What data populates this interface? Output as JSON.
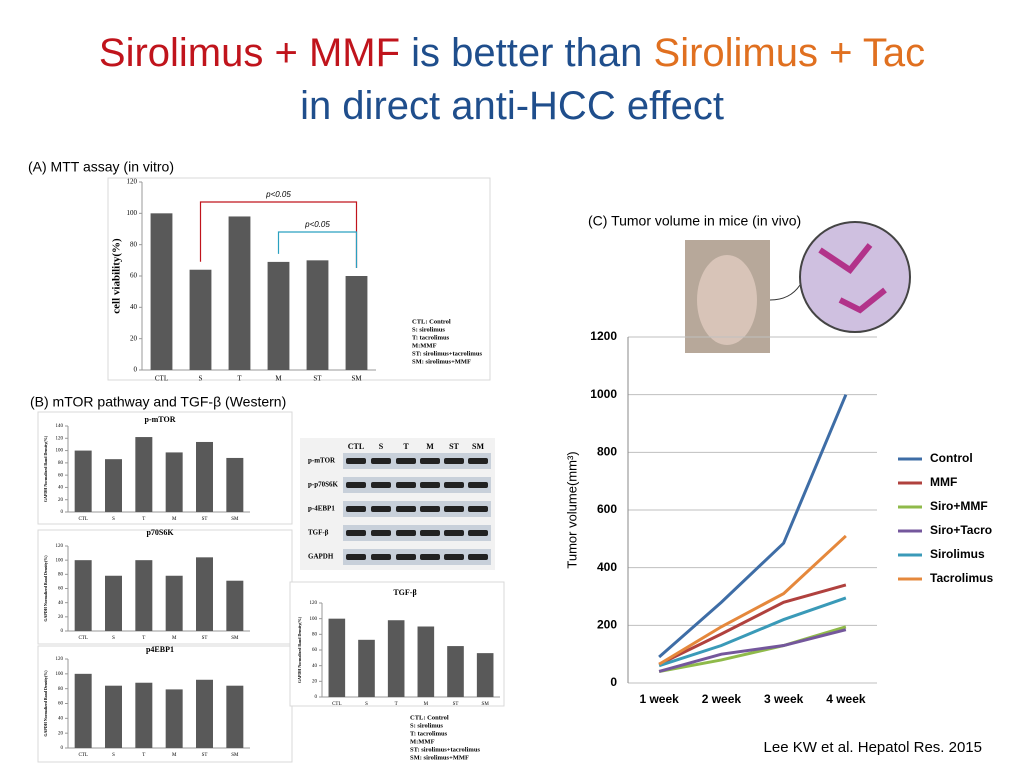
{
  "title_lines": [
    [
      {
        "text": "Sirolimus + MMF",
        "color": "#c0141c"
      },
      {
        "text": " is better than ",
        "color": "#1f4e8c"
      },
      {
        "text": "Sirolimus + Tac",
        "color": "#e07020"
      }
    ],
    [
      {
        "text": "in direct anti-HCC effect",
        "color": "#1f4e8c"
      }
    ]
  ],
  "sections": [
    "(A) MTT assay (in vitro)",
    "(B) mTOR pathway and TGF-β (Western)",
    "(C) Tumor volume in mice (in vivo)"
  ],
  "citation": "Lee KW et al. Hepatol Res. 2015",
  "western_blot": {
    "columns": [
      "CTL",
      "S",
      "T",
      "M",
      "ST",
      "SM"
    ],
    "rows": [
      "p-mTOR",
      "p-p70S6K",
      "p-4EBP1",
      "TGF-β",
      "GAPDH"
    ]
  },
  "chart_data": [
    {
      "type": "bar",
      "ylabel": "cell viability(%)",
      "categories": [
        "CTL",
        "S",
        "T",
        "M",
        "ST",
        "SM"
      ],
      "values": [
        100,
        64,
        98,
        69,
        70,
        60
      ],
      "color": "#595959",
      "ylim": [
        0,
        120
      ],
      "yticks": [
        0,
        20,
        40,
        60,
        80,
        100,
        120
      ],
      "annotations": [
        {
          "text": "p<0.05",
          "from": "S",
          "to": "SM",
          "color": "#c0141c"
        },
        {
          "text": "p<0.05",
          "from": "M",
          "to": "SM",
          "color": "#2aa0c0"
        }
      ],
      "notes": [
        "CTL: Control",
        "S: sirolimus",
        "T: tacrolimus",
        "M:MMF",
        "ST: sirolimus+tacrolimus",
        "SM: sirolimus+MMF"
      ]
    },
    {
      "type": "bar",
      "title": "p-mTOR",
      "ylabel": "GAPDH Normalized Band Density(%)",
      "categories": [
        "CTL",
        "S",
        "T",
        "M",
        "ST",
        "SM"
      ],
      "values": [
        100,
        86,
        122,
        97,
        114,
        88
      ],
      "color": "#595959",
      "ylim": [
        0,
        140
      ],
      "yticks": [
        0,
        20,
        40,
        60,
        80,
        100,
        120,
        140
      ]
    },
    {
      "type": "bar",
      "title": "p70S6K",
      "ylabel": "GAPDH Normalized Band Density(%)",
      "categories": [
        "CTL",
        "S",
        "T",
        "M",
        "ST",
        "SM"
      ],
      "values": [
        100,
        78,
        100,
        78,
        104,
        71
      ],
      "color": "#595959",
      "ylim": [
        0,
        120
      ],
      "yticks": [
        0,
        20,
        40,
        60,
        80,
        100,
        120
      ]
    },
    {
      "type": "bar",
      "title": "p4EBP1",
      "ylabel": "GAPDH Normalized Band Density(%)",
      "categories": [
        "CTL",
        "S",
        "T",
        "M",
        "ST",
        "SM"
      ],
      "values": [
        100,
        84,
        88,
        79,
        92,
        84
      ],
      "color": "#595959",
      "ylim": [
        0,
        120
      ],
      "yticks": [
        0,
        20,
        40,
        60,
        80,
        100,
        120
      ]
    },
    {
      "type": "bar",
      "title": "TGF-β",
      "ylabel": "GAPDH Normalized Band Density(%)",
      "categories": [
        "CTL",
        "S",
        "T",
        "M",
        "ST",
        "SM"
      ],
      "values": [
        100,
        73,
        98,
        90,
        65,
        56
      ],
      "color": "#595959",
      "ylim": [
        0,
        120
      ],
      "yticks": [
        0,
        20,
        40,
        60,
        80,
        100,
        120
      ],
      "notes": [
        "CTL: Control",
        "S: sirolimus",
        "T: tacrolimus",
        "M:MMF",
        "ST: sirolimus+tacrolimus",
        "SM: sirolimus+MMF"
      ]
    },
    {
      "type": "line",
      "ylabel": "Tumor volume(mm³)",
      "categories": [
        "1 week",
        "2 week",
        "3 week",
        "4 week"
      ],
      "ylim": [
        0,
        1200
      ],
      "yticks": [
        0,
        200,
        400,
        600,
        800,
        1000,
        1200
      ],
      "grid": true,
      "legend": "right",
      "series": [
        {
          "name": "Control",
          "color": "#3e6da6",
          "values": [
            90,
            280,
            485,
            1000
          ]
        },
        {
          "name": "MMF",
          "color": "#b0413e",
          "values": [
            65,
            170,
            280,
            340
          ]
        },
        {
          "name": "Siro+MMF",
          "color": "#8fba4a",
          "values": [
            40,
            80,
            130,
            195
          ]
        },
        {
          "name": "Siro+Tacro",
          "color": "#74579c",
          "values": [
            40,
            100,
            130,
            185
          ]
        },
        {
          "name": "Sirolimus",
          "color": "#3a9ab8",
          "values": [
            60,
            130,
            220,
            295
          ]
        },
        {
          "name": "Tacrolimus",
          "color": "#e5883c",
          "values": [
            65,
            195,
            310,
            510
          ]
        }
      ]
    }
  ]
}
